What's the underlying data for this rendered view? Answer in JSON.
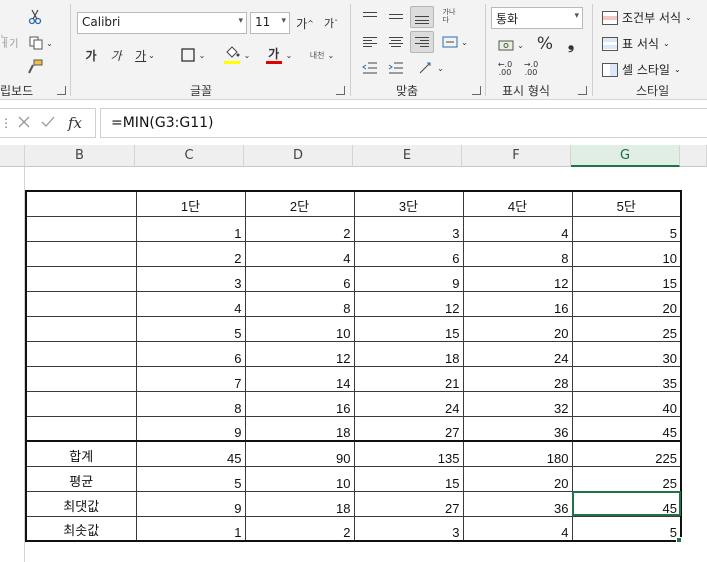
{
  "ribbon": {
    "clipboard": {
      "group_label": "립보드",
      "cut_icon": "scissors-icon",
      "copy_icon": "copy-icon",
      "paste_fragment": "붙여\n넣기",
      "format_painter_icon": "paintbrush-icon"
    },
    "font": {
      "group_label": "글꼴",
      "font_name": "Calibri",
      "font_size": "11",
      "grow_label": "가",
      "shrink_label": "가",
      "bold_label": "가",
      "italic_label": "가",
      "underline_label": "가",
      "font_color_label": "가",
      "phonetic_label": "내천",
      "fill_color": "#ffff00",
      "font_color": "#e00000"
    },
    "alignment": {
      "group_label": "맞춤",
      "wrap_label": "가나\n다"
    },
    "number": {
      "group_label": "표시 형식",
      "format": "통화",
      "percent": "%",
      "comma": "❟",
      "inc_decimal": ".00",
      "dec_decimal": ".00",
      "inc_top": "←.0",
      "dec_top": "→.0"
    },
    "styles": {
      "group_label": "스타일",
      "conditional": "조건부 서식",
      "table_format": "표 서식",
      "cell_styles": "셀 스타일"
    }
  },
  "formula_bar": {
    "cancel_icon": "x-icon",
    "enter_icon": "check-icon",
    "fx_label": "fx",
    "formula": "=MIN(G3:G11)"
  },
  "columns": [
    {
      "letter": "B",
      "selected": false
    },
    {
      "letter": "C",
      "selected": false
    },
    {
      "letter": "D",
      "selected": false
    },
    {
      "letter": "E",
      "selected": false
    },
    {
      "letter": "F",
      "selected": false
    },
    {
      "letter": "G",
      "selected": true
    }
  ],
  "table": {
    "header": [
      "",
      "1단",
      "2단",
      "3단",
      "4단",
      "5단"
    ],
    "rows": [
      [
        "",
        "1",
        "2",
        "3",
        "4",
        "5"
      ],
      [
        "",
        "2",
        "4",
        "6",
        "8",
        "10"
      ],
      [
        "",
        "3",
        "6",
        "9",
        "12",
        "15"
      ],
      [
        "",
        "4",
        "8",
        "12",
        "16",
        "20"
      ],
      [
        "",
        "5",
        "10",
        "15",
        "20",
        "25"
      ],
      [
        "",
        "6",
        "12",
        "18",
        "24",
        "30"
      ],
      [
        "",
        "7",
        "14",
        "21",
        "28",
        "35"
      ],
      [
        "",
        "8",
        "16",
        "24",
        "32",
        "40"
      ],
      [
        "",
        "9",
        "18",
        "27",
        "36",
        "45"
      ]
    ],
    "summary": [
      [
        "합계",
        "45",
        "90",
        "135",
        "180",
        "225"
      ],
      [
        "평균",
        "5",
        "10",
        "15",
        "20",
        "25"
      ],
      [
        "최댓값",
        "9",
        "18",
        "27",
        "36",
        "45"
      ],
      [
        "최솟값",
        "1",
        "2",
        "3",
        "4",
        "5"
      ]
    ]
  },
  "selection": {
    "row": 12,
    "col": 5
  },
  "colors": {
    "accent": "#217346",
    "border": "#111111"
  }
}
